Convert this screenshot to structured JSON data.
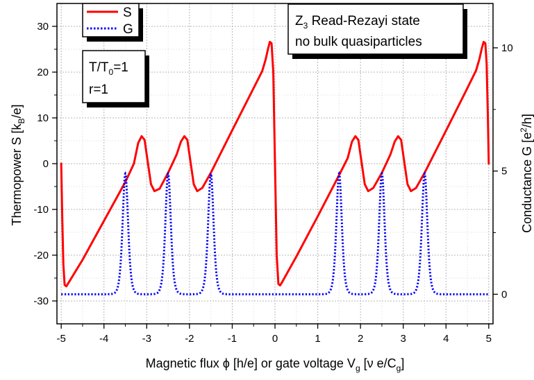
{
  "chart_data": {
    "type": "line",
    "x_axis": {
      "label_parts": [
        "Magnetic flux ",
        "ϕ",
        " [h/e] or gate voltage V",
        "g",
        " [ν e/C",
        "g",
        "]"
      ],
      "ticks": [
        -5,
        -4,
        -3,
        -2,
        -1,
        0,
        1,
        2,
        3,
        4,
        5
      ],
      "tick_labels": [
        "-5",
        "-4",
        "-3",
        "-2",
        "-1",
        "0",
        "1",
        "2",
        "3",
        "4",
        "5"
      ],
      "range": [
        -5.1,
        5.1
      ]
    },
    "y_axis_left": {
      "label_parts": [
        "Thermopower S [k",
        "B",
        "/e]"
      ],
      "ticks": [
        -30,
        -20,
        -10,
        0,
        10,
        20,
        30
      ],
      "tick_labels": [
        "-30",
        "-20",
        "-10",
        "0",
        "10",
        "20",
        "30"
      ],
      "range": [
        -35,
        35
      ]
    },
    "y_axis_right": {
      "label_parts": [
        "Conductance G [e",
        "2",
        "/h]"
      ],
      "ticks": [
        0,
        5,
        10
      ],
      "tick_labels": [
        "0",
        "5",
        "10"
      ],
      "range": [
        -1.2,
        11.8
      ]
    },
    "grid": true,
    "legend": {
      "placement": "top-left",
      "entries": [
        {
          "label": "S",
          "color": "#ff0000",
          "style": "solid"
        },
        {
          "label": "G",
          "color": "#0000ff",
          "style": "dotted"
        }
      ]
    },
    "annotations": {
      "state_lines": [
        [
          "Z",
          "3",
          " Read-Rezayi state"
        ],
        [
          "no bulk quasiparticles"
        ]
      ],
      "params_lines": [
        [
          "T/T",
          "0",
          "=1"
        ],
        [
          "r=1"
        ]
      ]
    },
    "series": [
      {
        "name": "S",
        "axis": "left",
        "color": "#ff0000",
        "x": [
          -5,
          -4.98,
          -4.95,
          -4.92,
          -4.88,
          -4.84,
          -4.5,
          -4,
          -3.5,
          -3.3,
          -3.2,
          -3.12,
          -3.05,
          -2.97,
          -2.9,
          -2.82,
          -2.7,
          -2.5,
          -2.3,
          -2.2,
          -2.12,
          -2.05,
          -1.97,
          -1.9,
          -1.82,
          -1.7,
          -1.5,
          -1,
          -0.5,
          -0.3,
          -0.22,
          -0.16,
          -0.12,
          -0.08,
          -0.04,
          0,
          0.04,
          0.08,
          0.12,
          0.16,
          0.5,
          1,
          1.5,
          1.7,
          1.8,
          1.88,
          1.95,
          2.03,
          2.1,
          2.18,
          2.3,
          2.5,
          2.7,
          2.8,
          2.88,
          2.95,
          3.03,
          3.1,
          3.18,
          3.3,
          3.5,
          4,
          4.5,
          4.7,
          4.78,
          4.84,
          4.88,
          4.92,
          4.95,
          4.98,
          5
        ],
        "y": [
          0,
          -10,
          -22,
          -26.5,
          -26.8,
          -26.2,
          -21,
          -12.5,
          -4,
          0,
          4.5,
          6,
          5.2,
          0,
          -4.5,
          -6,
          -5.5,
          -2,
          2,
          4.8,
          6,
          5.2,
          0,
          -4.5,
          -6,
          -5.3,
          -2,
          7.3,
          16.5,
          20.2,
          22.7,
          25.2,
          26.6,
          26.3,
          20,
          0,
          -20,
          -26.3,
          -26.6,
          -26,
          -20.3,
          -11.5,
          -2.5,
          1.2,
          4.8,
          6,
          5.2,
          0,
          -4.5,
          -6,
          -5.3,
          -2,
          2,
          4.8,
          6,
          5.2,
          0,
          -4.5,
          -6,
          -5.3,
          -2,
          7.2,
          16.5,
          20.3,
          22.8,
          25.3,
          26.6,
          26.3,
          22,
          10,
          0
        ]
      },
      {
        "name": "G",
        "axis": "right",
        "color": "#0000ff",
        "peaks": [
          -3.5,
          -2.5,
          -1.5,
          1.5,
          2.5,
          3.5
        ],
        "peak_height": 4.9,
        "baseline": 0,
        "x_range": [
          -5,
          5
        ]
      }
    ]
  }
}
